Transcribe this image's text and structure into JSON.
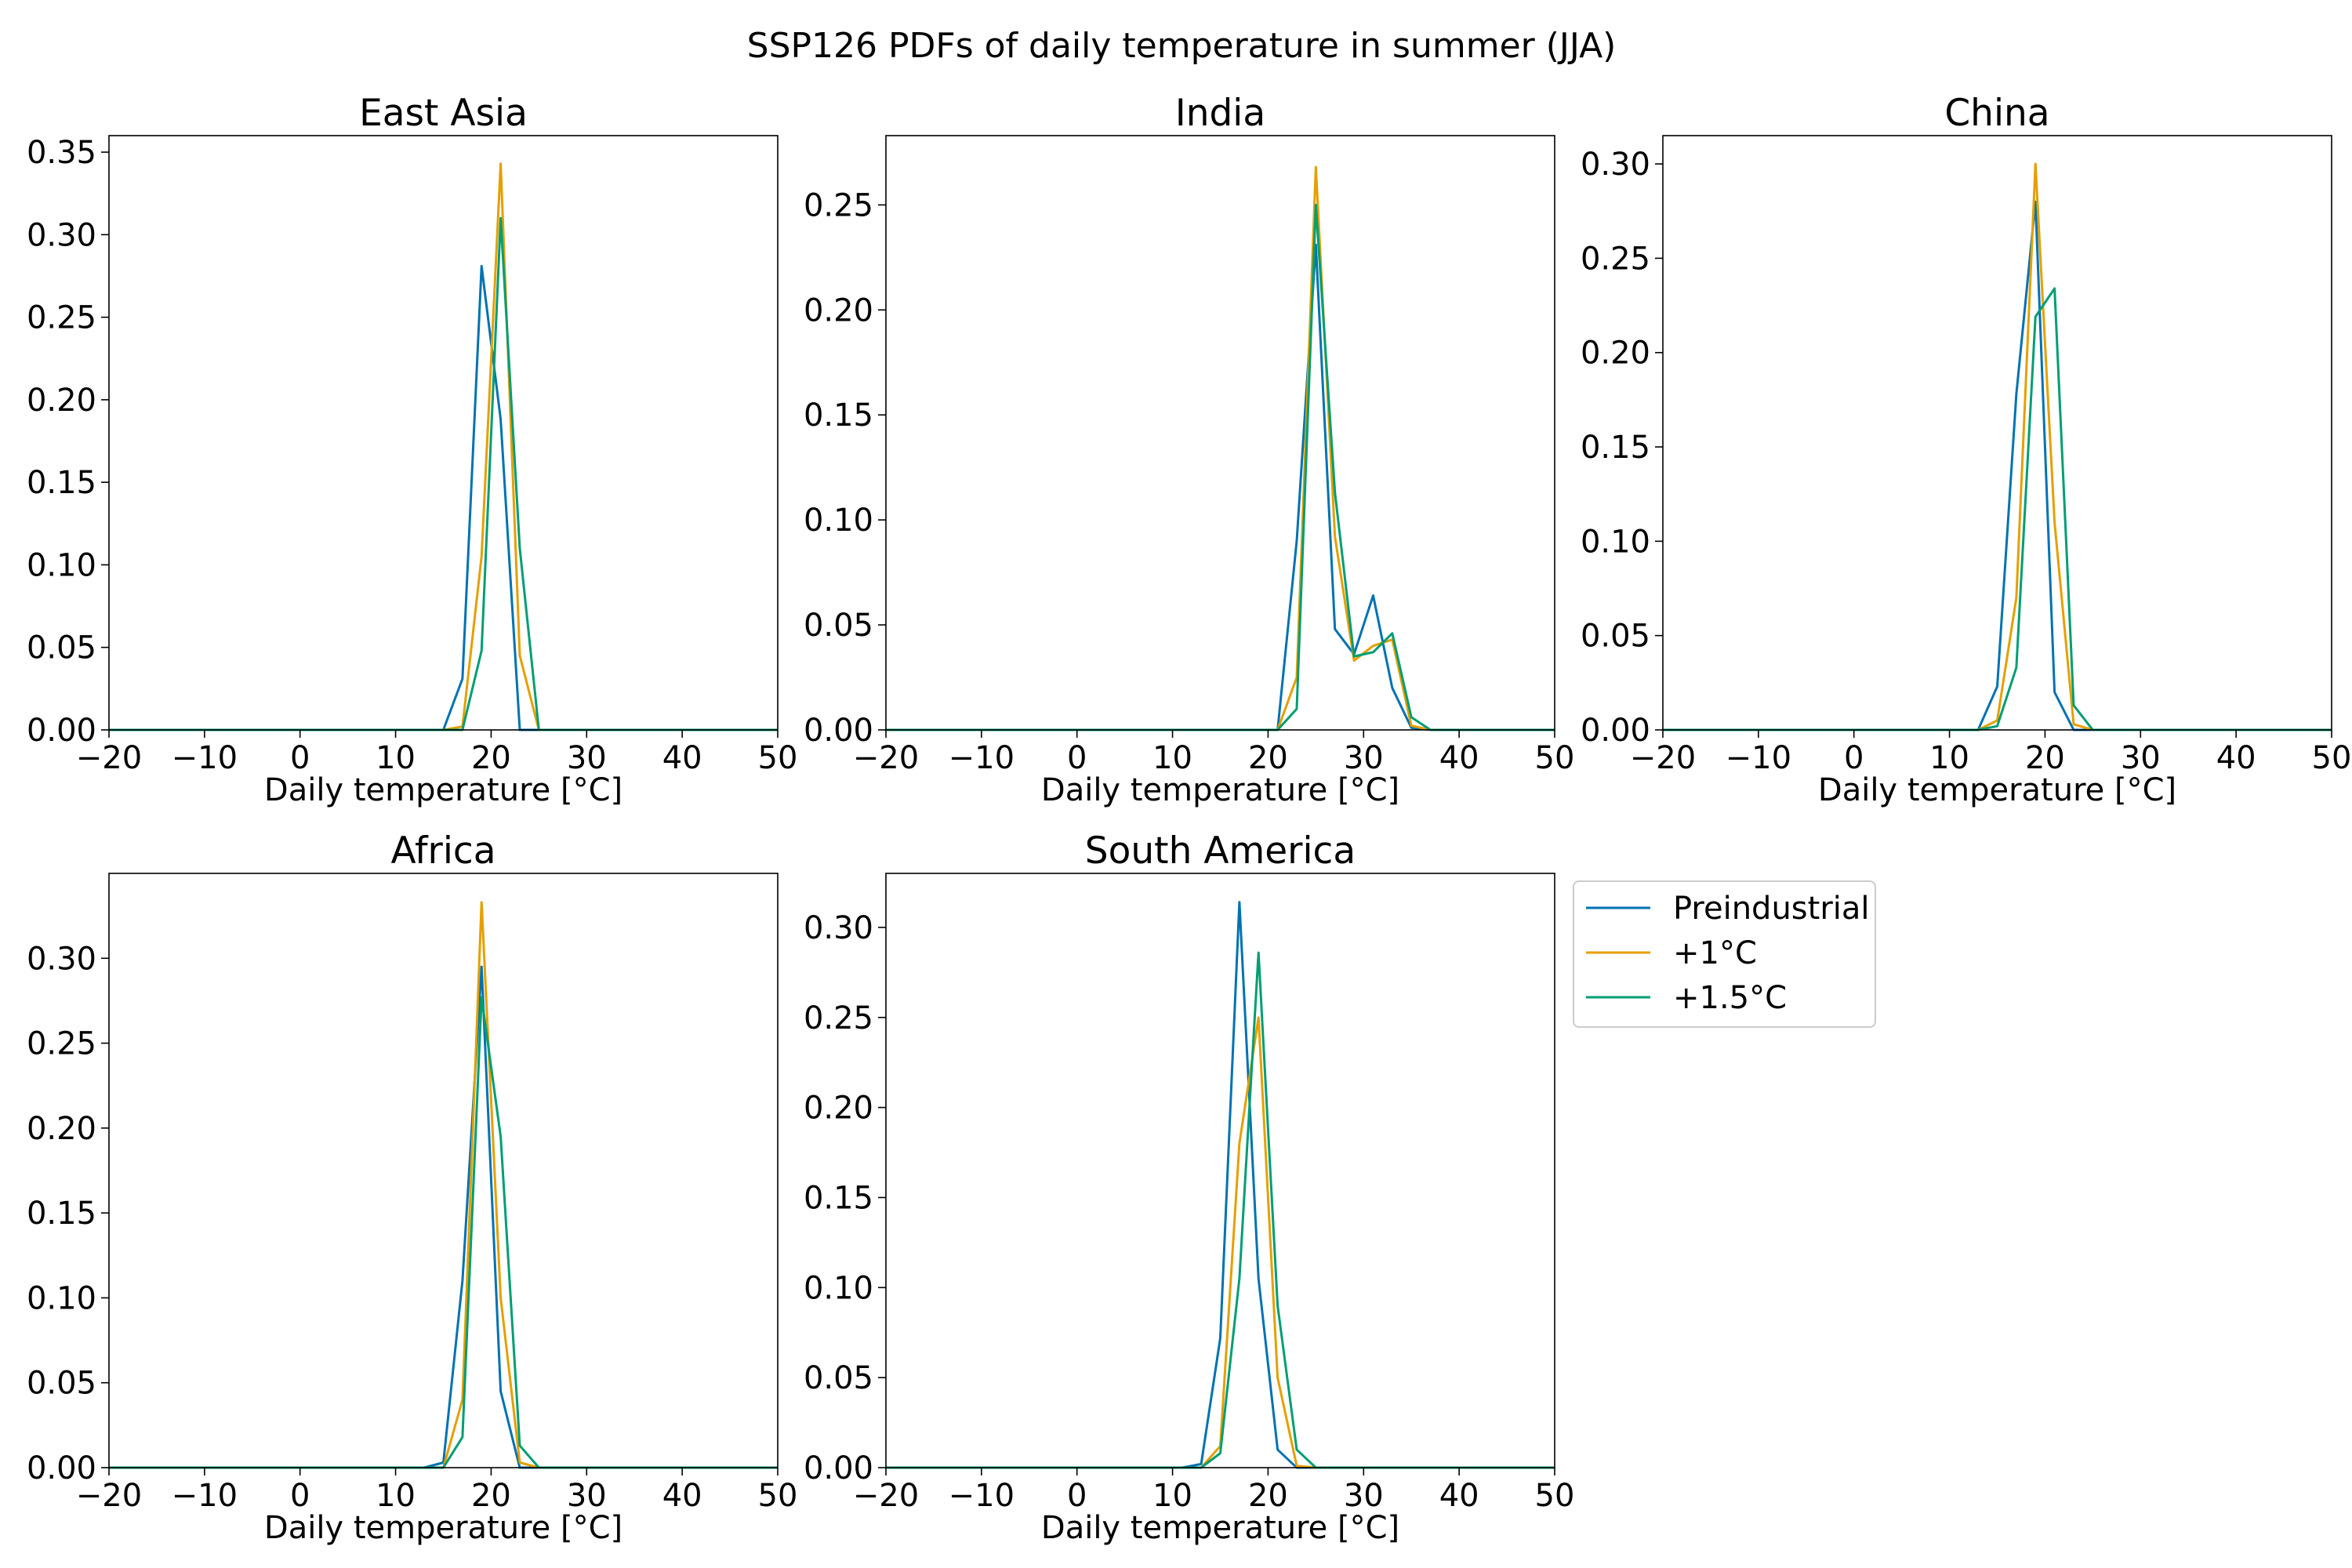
{
  "figure": {
    "suptitle": "SSP126 PDFs of daily temperature in summer (JJA)"
  },
  "legend": {
    "placement": "right of South America panel, upper",
    "entries": [
      {
        "name": "Preindustrial",
        "color": "#0072b2"
      },
      {
        "name": "+1°C",
        "color": "#e69f00"
      },
      {
        "name": "+1.5°C",
        "color": "#009e73"
      }
    ]
  },
  "chart_data": [
    {
      "type": "line",
      "title": "East Asia",
      "xlabel": "Daily temperature [°C]",
      "ylabel": "",
      "xlim": [
        -20,
        50
      ],
      "ylim": [
        0,
        0.36
      ],
      "xticks": [
        -20,
        -10,
        0,
        10,
        20,
        30,
        40,
        50
      ],
      "yticks": [
        0.0,
        0.05,
        0.1,
        0.15,
        0.2,
        0.25,
        0.3,
        0.35
      ],
      "xtick_labels": [
        "−20",
        "−10",
        "0",
        "10",
        "20",
        "30",
        "40",
        "50"
      ],
      "ytick_labels": [
        "0.00",
        "0.05",
        "0.10",
        "0.15",
        "0.20",
        "0.25",
        "0.30",
        "0.35"
      ],
      "grid": false,
      "series": [
        {
          "name": "Preindustrial",
          "color": "#0072b2",
          "x": [
            -20,
            15,
            17,
            19,
            21,
            23,
            25,
            50
          ],
          "y": [
            0,
            0,
            0.031,
            0.281,
            0.188,
            0,
            0,
            0
          ]
        },
        {
          "name": "+1°C",
          "color": "#e69f00",
          "x": [
            -20,
            15,
            17,
            19,
            21,
            23,
            25,
            50
          ],
          "y": [
            0,
            0,
            0.002,
            0.105,
            0.343,
            0.045,
            0,
            0
          ]
        },
        {
          "name": "+1.5°C",
          "color": "#009e73",
          "x": [
            -20,
            15,
            17,
            19,
            21,
            23,
            25,
            50
          ],
          "y": [
            0,
            0,
            0,
            0.048,
            0.31,
            0.11,
            0,
            0
          ]
        }
      ]
    },
    {
      "type": "line",
      "title": "India",
      "xlabel": "Daily temperature [°C]",
      "ylabel": "",
      "xlim": [
        -20,
        50
      ],
      "ylim": [
        0,
        0.283
      ],
      "xticks": [
        -20,
        -10,
        0,
        10,
        20,
        30,
        40,
        50
      ],
      "yticks": [
        0.0,
        0.05,
        0.1,
        0.15,
        0.2,
        0.25
      ],
      "xtick_labels": [
        "−20",
        "−10",
        "0",
        "10",
        "20",
        "30",
        "40",
        "50"
      ],
      "ytick_labels": [
        "0.00",
        "0.05",
        "0.10",
        "0.15",
        "0.20",
        "0.25"
      ],
      "grid": false,
      "series": [
        {
          "name": "Preindustrial",
          "color": "#0072b2",
          "x": [
            -20,
            21,
            23,
            25,
            27,
            29,
            31,
            33,
            35,
            37,
            50
          ],
          "y": [
            0,
            0,
            0.09,
            0.231,
            0.048,
            0.036,
            0.064,
            0.02,
            0.001,
            0,
            0
          ]
        },
        {
          "name": "+1°C",
          "color": "#e69f00",
          "x": [
            -20,
            21,
            23,
            25,
            27,
            29,
            31,
            33,
            35,
            37,
            50
          ],
          "y": [
            0,
            0,
            0.025,
            0.268,
            0.092,
            0.033,
            0.04,
            0.043,
            0.002,
            0,
            0
          ]
        },
        {
          "name": "+1.5°C",
          "color": "#009e73",
          "x": [
            -20,
            21,
            23,
            25,
            27,
            29,
            31,
            33,
            35,
            37,
            50
          ],
          "y": [
            0,
            0,
            0.01,
            0.25,
            0.113,
            0.035,
            0.037,
            0.046,
            0.006,
            0,
            0
          ]
        }
      ]
    },
    {
      "type": "line",
      "title": "China",
      "xlabel": "Daily temperature [°C]",
      "ylabel": "",
      "xlim": [
        -20,
        50
      ],
      "ylim": [
        0,
        0.315
      ],
      "xticks": [
        -20,
        -10,
        0,
        10,
        20,
        30,
        40,
        50
      ],
      "yticks": [
        0.0,
        0.05,
        0.1,
        0.15,
        0.2,
        0.25,
        0.3
      ],
      "xtick_labels": [
        "−20",
        "−10",
        "0",
        "10",
        "20",
        "30",
        "40",
        "50"
      ],
      "ytick_labels": [
        "0.00",
        "0.05",
        "0.10",
        "0.15",
        "0.20",
        "0.25",
        "0.30"
      ],
      "grid": false,
      "series": [
        {
          "name": "Preindustrial",
          "color": "#0072b2",
          "x": [
            -20,
            13,
            15,
            17,
            19,
            21,
            23,
            25,
            50
          ],
          "y": [
            0,
            0,
            0.023,
            0.178,
            0.28,
            0.02,
            0,
            0,
            0
          ]
        },
        {
          "name": "+1°C",
          "color": "#e69f00",
          "x": [
            -20,
            13,
            15,
            17,
            19,
            21,
            23,
            25,
            50
          ],
          "y": [
            0,
            0,
            0.005,
            0.07,
            0.3,
            0.11,
            0.003,
            0,
            0
          ]
        },
        {
          "name": "+1.5°C",
          "color": "#009e73",
          "x": [
            -20,
            13,
            15,
            17,
            19,
            21,
            23,
            25,
            50
          ],
          "y": [
            0,
            0,
            0.002,
            0.033,
            0.219,
            0.234,
            0.013,
            0,
            0
          ]
        }
      ]
    },
    {
      "type": "line",
      "title": "Africa",
      "xlabel": "Daily temperature [°C]",
      "ylabel": "",
      "xlim": [
        -20,
        50
      ],
      "ylim": [
        0,
        0.35
      ],
      "xticks": [
        -20,
        -10,
        0,
        10,
        20,
        30,
        40,
        50
      ],
      "yticks": [
        0.0,
        0.05,
        0.1,
        0.15,
        0.2,
        0.25,
        0.3
      ],
      "xtick_labels": [
        "−20",
        "−10",
        "0",
        "10",
        "20",
        "30",
        "40",
        "50"
      ],
      "ytick_labels": [
        "0.00",
        "0.05",
        "0.10",
        "0.15",
        "0.20",
        "0.25",
        "0.30"
      ],
      "grid": false,
      "series": [
        {
          "name": "Preindustrial",
          "color": "#0072b2",
          "x": [
            -20,
            13,
            15,
            17,
            19,
            21,
            23,
            25,
            50
          ],
          "y": [
            0,
            0,
            0.003,
            0.11,
            0.295,
            0.045,
            0,
            0,
            0
          ]
        },
        {
          "name": "+1°C",
          "color": "#e69f00",
          "x": [
            -20,
            13,
            15,
            17,
            19,
            21,
            23,
            25,
            50
          ],
          "y": [
            0,
            0,
            0,
            0.04,
            0.333,
            0.1,
            0.003,
            0,
            0
          ]
        },
        {
          "name": "+1.5°C",
          "color": "#009e73",
          "x": [
            -20,
            13,
            15,
            17,
            19,
            21,
            23,
            25,
            50
          ],
          "y": [
            0,
            0,
            0,
            0.018,
            0.277,
            0.195,
            0.013,
            0,
            0
          ]
        }
      ]
    },
    {
      "type": "line",
      "title": "South America",
      "xlabel": "Daily temperature [°C]",
      "ylabel": "",
      "xlim": [
        -20,
        50
      ],
      "ylim": [
        0,
        0.33
      ],
      "xticks": [
        -20,
        -10,
        0,
        10,
        20,
        30,
        40,
        50
      ],
      "yticks": [
        0.0,
        0.05,
        0.1,
        0.15,
        0.2,
        0.25,
        0.3
      ],
      "xtick_labels": [
        "−20",
        "−10",
        "0",
        "10",
        "20",
        "30",
        "40",
        "50"
      ],
      "ytick_labels": [
        "0.00",
        "0.05",
        "0.10",
        "0.15",
        "0.20",
        "0.25",
        "0.30"
      ],
      "grid": false,
      "series": [
        {
          "name": "Preindustrial",
          "color": "#0072b2",
          "x": [
            -20,
            11,
            13,
            15,
            17,
            19,
            21,
            23,
            25,
            50
          ],
          "y": [
            0,
            0,
            0.002,
            0.072,
            0.314,
            0.105,
            0.01,
            0,
            0,
            0
          ]
        },
        {
          "name": "+1°C",
          "color": "#e69f00",
          "x": [
            -20,
            11,
            13,
            15,
            17,
            19,
            21,
            23,
            25,
            50
          ],
          "y": [
            0,
            0,
            0,
            0.012,
            0.18,
            0.25,
            0.05,
            0.001,
            0,
            0
          ]
        },
        {
          "name": "+1.5°C",
          "color": "#009e73",
          "x": [
            -20,
            11,
            13,
            15,
            17,
            19,
            21,
            23,
            25,
            50
          ],
          "y": [
            0,
            0,
            0,
            0.008,
            0.105,
            0.286,
            0.09,
            0.01,
            0,
            0
          ]
        }
      ]
    }
  ]
}
